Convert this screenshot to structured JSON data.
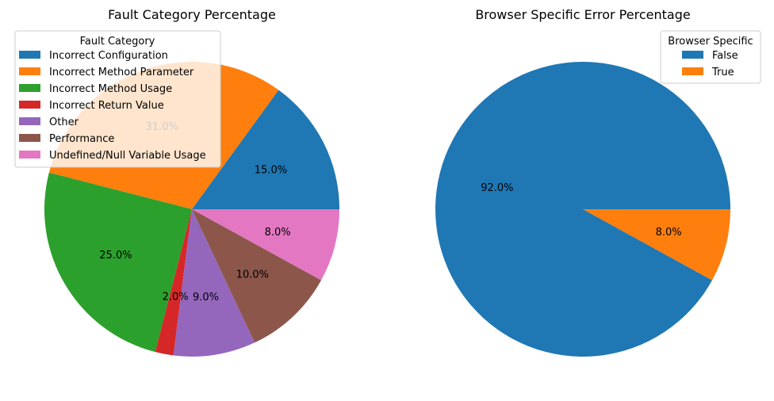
{
  "chart_data": [
    {
      "type": "pie",
      "title": "Fault Category Percentage",
      "legend": {
        "title": "Fault Category",
        "placement": "top-left"
      },
      "start_angle_deg": 0,
      "direction": "counterclockwise",
      "slices": [
        {
          "label": "Incorrect Configuration",
          "value": 15.0,
          "pct_label": "15.0%",
          "color": "#1f77b4"
        },
        {
          "label": "Incorrect Method Parameter",
          "value": 31.0,
          "pct_label": "31.0%",
          "color": "#ff7f0e"
        },
        {
          "label": "Incorrect Method Usage",
          "value": 25.0,
          "pct_label": "25.0%",
          "color": "#2ca02c"
        },
        {
          "label": "Incorrect Return Value",
          "value": 2.0,
          "pct_label": "2.0%",
          "color": "#d62728"
        },
        {
          "label": "Other",
          "value": 9.0,
          "pct_label": "9.0%",
          "color": "#9467bd"
        },
        {
          "label": "Performance",
          "value": 10.0,
          "pct_label": "10.0%",
          "color": "#8c564b"
        },
        {
          "label": "Undefined/Null Variable Usage",
          "value": 8.0,
          "pct_label": "8.0%",
          "color": "#e377c2"
        }
      ]
    },
    {
      "type": "pie",
      "title": "Browser Specific Error Percentage",
      "legend": {
        "title": "Browser Specific",
        "placement": "top-right"
      },
      "start_angle_deg": 0,
      "direction": "counterclockwise",
      "slices": [
        {
          "label": "False",
          "value": 92.0,
          "pct_label": "92.0%",
          "color": "#1f77b4"
        },
        {
          "label": "True",
          "value": 8.0,
          "pct_label": "8.0%",
          "color": "#ff7f0e"
        }
      ]
    }
  ]
}
